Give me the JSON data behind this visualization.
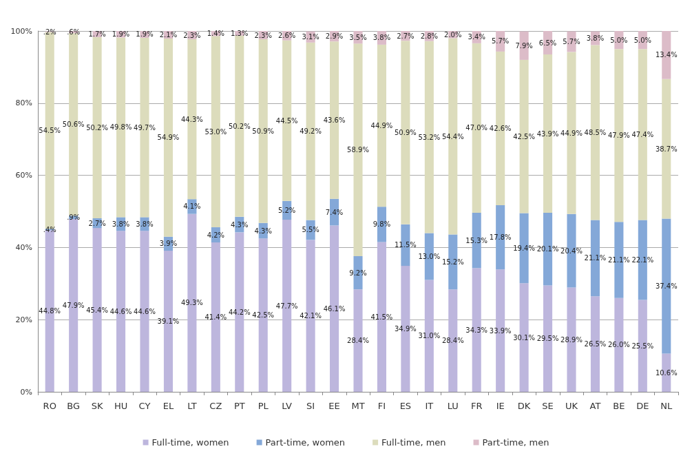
{
  "chart_data": {
    "type": "bar",
    "stacked": true,
    "categories": [
      "RO",
      "BG",
      "SK",
      "HU",
      "CY",
      "EL",
      "LT",
      "CZ",
      "PT",
      "PL",
      "LV",
      "SI",
      "EE",
      "MT",
      "FI",
      "ES",
      "IT",
      "LU",
      "FR",
      "IE",
      "DK",
      "SE",
      "UK",
      "AT",
      "BE",
      "DE",
      "NL"
    ],
    "series": [
      {
        "name": "Full-time, women",
        "color": "#bdb6dd",
        "values": [
          44.8,
          47.9,
          45.4,
          44.6,
          44.6,
          39.1,
          49.3,
          41.4,
          44.2,
          42.5,
          47.7,
          42.1,
          46.1,
          28.4,
          41.5,
          34.9,
          31.0,
          28.4,
          34.3,
          33.9,
          30.1,
          29.5,
          28.9,
          26.5,
          26.0,
          25.5,
          10.6
        ],
        "value_labels": [
          "44.8%",
          "47.9%",
          "45.4%",
          "44.6%",
          "44.6%",
          "39.1%",
          "49.3%",
          "41.4%",
          "44.2%",
          "42.5%",
          "47.7%",
          "42.1%",
          "46.1%",
          "28.4%",
          "41.5%",
          "34.9%",
          "31.0%",
          "28.4%",
          "34.3%",
          "33.9%",
          "30.1%",
          "29.5%",
          "28.9%",
          "26.5%",
          "26.0%",
          "25.5%",
          "10.6%"
        ]
      },
      {
        "name": "Part-time, women",
        "color": "#84a8d8",
        "values": [
          0.4,
          0.9,
          2.7,
          3.8,
          3.8,
          3.9,
          4.1,
          4.2,
          4.3,
          4.3,
          5.2,
          5.5,
          7.4,
          9.2,
          9.8,
          11.5,
          13.0,
          15.2,
          15.3,
          17.8,
          19.4,
          20.1,
          20.4,
          21.1,
          21.1,
          22.1,
          37.4
        ],
        "value_labels": [
          ".4%",
          ".9%",
          "2.7%",
          "3.8%",
          "3.8%",
          "3.9%",
          "4.1%",
          "4.2%",
          "4.3%",
          "4.3%",
          "5.2%",
          "5.5%",
          "7.4%",
          "9.2%",
          "9.8%",
          "11.5%",
          "13.0%",
          "15.2%",
          "15.3%",
          "17.8%",
          "19.4%",
          "20.1%",
          "20.4%",
          "21.1%",
          "21.1%",
          "22.1%",
          "37.4%"
        ]
      },
      {
        "name": "Full-time, men",
        "color": "#dcdcbc",
        "values": [
          54.5,
          50.6,
          50.2,
          49.8,
          49.7,
          54.9,
          44.3,
          53.0,
          50.2,
          50.9,
          44.5,
          49.2,
          43.6,
          58.9,
          44.9,
          50.9,
          53.2,
          54.4,
          47.0,
          42.6,
          42.5,
          43.9,
          44.9,
          48.5,
          47.9,
          47.4,
          38.7
        ],
        "value_labels": [
          "54.5%",
          "50.6%",
          "50.2%",
          "49.8%",
          "49.7%",
          "54.9%",
          "44.3%",
          "53.0%",
          "50.2%",
          "50.9%",
          "44.5%",
          "49.2%",
          "43.6%",
          "58.9%",
          "44.9%",
          "50.9%",
          "53.2%",
          "54.4%",
          "47.0%",
          "42.6%",
          "42.5%",
          "43.9%",
          "44.9%",
          "48.5%",
          "47.9%",
          "47.4%",
          "38.7%"
        ]
      },
      {
        "name": "Part-time, men",
        "color": "#dcbcc8",
        "values": [
          0.2,
          0.6,
          1.7,
          1.9,
          1.9,
          2.1,
          2.3,
          1.4,
          1.3,
          2.3,
          2.6,
          3.1,
          2.9,
          3.5,
          3.8,
          2.7,
          2.8,
          2.0,
          3.4,
          5.7,
          7.9,
          6.5,
          5.7,
          3.8,
          5.0,
          5.0,
          13.4
        ],
        "value_labels": [
          ".2%",
          ".6%",
          "1.7%",
          "1.9%",
          "1.9%",
          "2.1%",
          "2.3%",
          "1.4%",
          "1.3%",
          "2.3%",
          "2.6%",
          "3.1%",
          "2.9%",
          "3.5%",
          "3.8%",
          "2.7%",
          "2.8%",
          "2.0%",
          "3.4%",
          "5.7%",
          "7.9%",
          "6.5%",
          "5.7%",
          "3.8%",
          "5.0%",
          "5.0%",
          "13.4%"
        ]
      }
    ],
    "ylim": [
      0,
      100
    ],
    "yticks": [
      {
        "value": 0,
        "label": "0%"
      },
      {
        "value": 20,
        "label": "20%"
      },
      {
        "value": 40,
        "label": "40%"
      },
      {
        "value": 60,
        "label": "60%"
      },
      {
        "value": 80,
        "label": "80%"
      },
      {
        "value": 100,
        "label": "100%"
      }
    ],
    "grid": "y",
    "legend": "bottom"
  }
}
